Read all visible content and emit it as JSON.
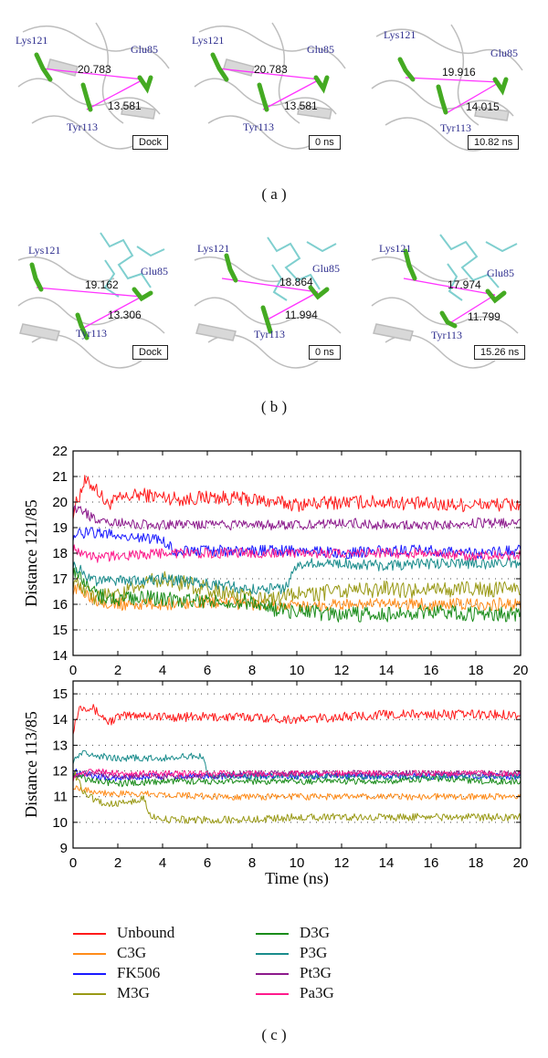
{
  "panels_a": [
    {
      "labels": {
        "lys": "Lys121",
        "glu": "Glu85",
        "tyr": "Tyr113"
      },
      "d1": "20.783",
      "d2": "13.581",
      "time": "Dock"
    },
    {
      "labels": {
        "lys": "Lys121",
        "glu": "Glu85",
        "tyr": "Tyr113"
      },
      "d1": "20.783",
      "d2": "13.581",
      "time": "0 ns"
    },
    {
      "labels": {
        "lys": "Lys121",
        "glu": "Glu85",
        "tyr": "Tyr113"
      },
      "d1": "19.916",
      "d2": "14.015",
      "time": "10.82 ns"
    }
  ],
  "panels_b": [
    {
      "labels": {
        "lys": "Lys121",
        "glu": "Glu85",
        "tyr": "Tyr113"
      },
      "d1": "19.162",
      "d2": "13.306",
      "time": "Dock"
    },
    {
      "labels": {
        "lys": "Lys121",
        "glu": "Glu85",
        "tyr": "Tyr113"
      },
      "d1": "18.864",
      "d2": "11.994",
      "time": "0 ns"
    },
    {
      "labels": {
        "lys": "Lys121",
        "glu": "Glu85",
        "tyr": "Tyr113"
      },
      "d1": "17.974",
      "d2": "11.799",
      "time": "15.26 ns"
    }
  ],
  "captions": {
    "a": "( a )",
    "b": "( b )",
    "c": "( c )"
  },
  "chart_data": {
    "type": "line",
    "xlabel": "Time (ns)",
    "xlim": [
      0,
      20
    ],
    "xticks": [
      0,
      2,
      4,
      6,
      8,
      10,
      12,
      14,
      16,
      18,
      20
    ],
    "subplots": [
      {
        "ylabel": "Distance 121/85",
        "ylim": [
          14,
          22
        ],
        "yticks": [
          14,
          15,
          16,
          17,
          18,
          19,
          20,
          21,
          22
        ],
        "series": [
          {
            "name": "Unbound",
            "color": "#ff1a1a",
            "x": [
              0,
              0.5,
              1,
              1.5,
              2,
              3,
              4,
              5,
              6,
              8,
              10,
              12,
              14,
              16,
              18,
              20
            ],
            "y": [
              19.6,
              20.8,
              20.6,
              19.9,
              20.1,
              20.3,
              20.2,
              20.1,
              20.2,
              20.1,
              19.9,
              20.0,
              20.0,
              19.9,
              19.9,
              19.9
            ],
            "noise": 0.28
          },
          {
            "name": "C3G",
            "color": "#ff8c1a",
            "x": [
              0,
              0.5,
              1,
              2,
              4,
              6,
              8,
              10,
              12,
              14,
              16,
              18,
              20
            ],
            "y": [
              16.6,
              16.5,
              16.2,
              16.0,
              16.0,
              16.1,
              16.0,
              15.9,
              16.0,
              16.0,
              16.0,
              16.0,
              16.0
            ],
            "noise": 0.25
          },
          {
            "name": "FK506",
            "color": "#1a1aff",
            "x": [
              0,
              0.5,
              1,
              2,
              4,
              4.5,
              6,
              8,
              10,
              12,
              14,
              16,
              18,
              20
            ],
            "y": [
              18.7,
              18.8,
              18.8,
              18.7,
              18.5,
              18.1,
              18.1,
              18.1,
              18.1,
              18.0,
              18.1,
              18.1,
              18.0,
              18.1
            ],
            "noise": 0.22
          },
          {
            "name": "M3G",
            "color": "#999915",
            "x": [
              0,
              0.5,
              1,
              2,
              3,
              4,
              5,
              6,
              8,
              9,
              10,
              12,
              14,
              16,
              18,
              20
            ],
            "y": [
              16.9,
              16.5,
              16.3,
              16.3,
              16.8,
              17.0,
              16.8,
              16.6,
              16.3,
              16.2,
              16.4,
              16.5,
              16.6,
              16.5,
              16.6,
              16.6
            ],
            "noise": 0.32
          },
          {
            "name": "D3G",
            "color": "#1a8c1a",
            "x": [
              0,
              0.5,
              1,
              2,
              3,
              4,
              6,
              8,
              9,
              10,
              12,
              14,
              16,
              18,
              20
            ],
            "y": [
              17.4,
              16.8,
              16.4,
              16.2,
              16.3,
              16.2,
              16.1,
              16.1,
              15.8,
              15.7,
              15.6,
              15.6,
              15.7,
              15.6,
              15.6
            ],
            "noise": 0.3
          },
          {
            "name": "P3G",
            "color": "#1a8c8c",
            "x": [
              0,
              0.5,
              1,
              2,
              4,
              6,
              8,
              9.5,
              9.8,
              10,
              12,
              14,
              16,
              18,
              20
            ],
            "y": [
              17.6,
              17.2,
              16.9,
              16.9,
              17.0,
              16.8,
              16.6,
              16.6,
              17.2,
              17.6,
              17.6,
              17.5,
              17.6,
              17.6,
              17.6
            ],
            "noise": 0.22
          },
          {
            "name": "Pt3G",
            "color": "#8c1a8c",
            "x": [
              0,
              0.5,
              1,
              2,
              4,
              6,
              8,
              10,
              12,
              14,
              16,
              18,
              20
            ],
            "y": [
              19.7,
              19.6,
              19.3,
              19.2,
              19.1,
              19.1,
              19.1,
              19.1,
              19.2,
              19.1,
              19.1,
              19.2,
              19.2
            ],
            "noise": 0.2
          },
          {
            "name": "Pa3G",
            "color": "#ff1a8c",
            "x": [
              0,
              0.5,
              1,
              2,
              4,
              6,
              8,
              10,
              12,
              14,
              16,
              18,
              20
            ],
            "y": [
              18.2,
              18.0,
              17.8,
              17.9,
              18.0,
              18.0,
              18.0,
              18.0,
              18.0,
              18.0,
              18.0,
              17.9,
              17.9
            ],
            "noise": 0.2
          }
        ]
      },
      {
        "ylabel": "Distance 113/85",
        "ylim": [
          9,
          15.5
        ],
        "yticks": [
          9,
          10,
          11,
          12,
          13,
          14,
          15
        ],
        "series": [
          {
            "name": "Unbound",
            "color": "#ff1a1a",
            "x": [
              0,
              0.3,
              0.8,
              1.2,
              1.6,
              2,
              3,
              4,
              6,
              8,
              10,
              12,
              14,
              16,
              18,
              20
            ],
            "y": [
              13.6,
              14.5,
              14.5,
              14.2,
              13.9,
              14.1,
              14.2,
              14.1,
              14.1,
              14.1,
              14.0,
              14.1,
              14.2,
              14.2,
              14.2,
              14.2
            ],
            "noise": 0.18
          },
          {
            "name": "C3G",
            "color": "#ff8c1a",
            "x": [
              0,
              0.5,
              1,
              2,
              4,
              6,
              8,
              10,
              12,
              14,
              16,
              18,
              20
            ],
            "y": [
              11.4,
              11.3,
              11.2,
              11.1,
              11.1,
              11.0,
              11.0,
              11.0,
              11.0,
              11.0,
              11.0,
              11.0,
              11.0
            ],
            "noise": 0.13
          },
          {
            "name": "FK506",
            "color": "#1a1aff",
            "x": [
              0,
              0.5,
              1,
              2,
              4,
              6,
              8,
              10,
              12,
              14,
              16,
              18,
              20
            ],
            "y": [
              12.0,
              11.9,
              11.8,
              11.7,
              11.8,
              11.8,
              11.8,
              11.8,
              11.8,
              11.8,
              11.8,
              11.8,
              11.8
            ],
            "noise": 0.13
          },
          {
            "name": "M3G",
            "color": "#999915",
            "x": [
              0,
              0.4,
              1,
              1.5,
              2.5,
              3.2,
              3.5,
              4,
              6,
              8,
              10,
              12,
              14,
              16,
              18,
              20
            ],
            "y": [
              12.0,
              11.3,
              10.8,
              10.7,
              10.8,
              10.9,
              10.2,
              10.1,
              10.1,
              10.1,
              10.2,
              10.2,
              10.2,
              10.2,
              10.2,
              10.2
            ],
            "noise": 0.15
          },
          {
            "name": "D3G",
            "color": "#1a8c1a",
            "x": [
              0,
              0.5,
              1,
              2,
              4,
              6,
              8,
              10,
              12,
              14,
              16,
              18,
              20
            ],
            "y": [
              11.9,
              11.7,
              11.6,
              11.5,
              11.6,
              11.6,
              11.6,
              11.6,
              11.6,
              11.6,
              11.7,
              11.6,
              11.6
            ],
            "noise": 0.13
          },
          {
            "name": "P3G",
            "color": "#1a8c8c",
            "x": [
              0,
              0.5,
              1,
              2,
              4,
              5.8,
              6,
              8,
              10,
              12,
              14,
              16,
              18,
              20
            ],
            "y": [
              12.4,
              12.7,
              12.6,
              12.5,
              12.5,
              12.6,
              11.8,
              11.8,
              11.8,
              11.8,
              11.8,
              11.8,
              11.8,
              11.8
            ],
            "noise": 0.13
          },
          {
            "name": "Pt3G",
            "color": "#8c1a8c",
            "x": [
              0,
              0.5,
              1,
              2,
              4,
              6,
              8,
              10,
              12,
              14,
              16,
              18,
              20
            ],
            "y": [
              11.8,
              11.9,
              11.9,
              11.8,
              11.8,
              11.8,
              11.9,
              11.9,
              11.9,
              11.9,
              11.9,
              11.9,
              11.9
            ],
            "noise": 0.12
          },
          {
            "name": "Pa3G",
            "color": "#ff1a8c",
            "x": [
              0,
              0.5,
              1,
              2,
              4,
              6,
              8,
              10,
              12,
              14,
              16,
              18,
              20
            ],
            "y": [
              11.7,
              11.9,
              12.0,
              11.9,
              11.9,
              11.9,
              11.9,
              11.9,
              11.9,
              11.9,
              11.9,
              11.9,
              11.9
            ],
            "noise": 0.12
          }
        ]
      }
    ]
  },
  "legend": [
    {
      "name": "Unbound",
      "color": "#ff1a1a"
    },
    {
      "name": "C3G",
      "color": "#ff8c1a"
    },
    {
      "name": "FK506",
      "color": "#1a1aff"
    },
    {
      "name": "M3G",
      "color": "#999915"
    },
    {
      "name": "D3G",
      "color": "#1a8c1a"
    },
    {
      "name": "P3G",
      "color": "#1a8c8c"
    },
    {
      "name": "Pt3G",
      "color": "#8c1a8c"
    },
    {
      "name": "Pa3G",
      "color": "#ff1a8c"
    }
  ]
}
